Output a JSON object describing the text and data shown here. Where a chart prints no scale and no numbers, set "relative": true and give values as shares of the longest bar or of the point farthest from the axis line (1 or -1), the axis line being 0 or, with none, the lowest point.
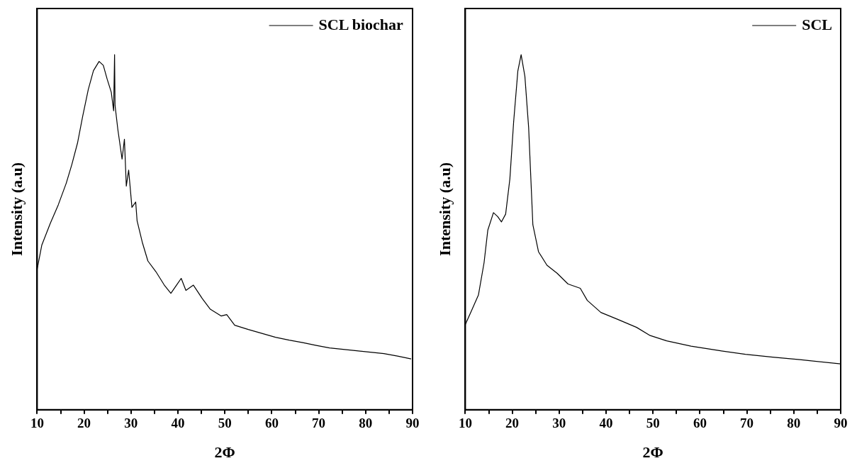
{
  "chart_data": [
    {
      "type": "line",
      "xlabel": "2Φ",
      "ylabel": "Intensity (a.u)",
      "relative": true,
      "legend": "top right",
      "grid": false,
      "marker": "none",
      "line_style": "solid",
      "xlim": [
        10,
        90
      ],
      "xticks": [
        10,
        {
          "value": 15,
          "label": null
        },
        20,
        {
          "value": 25,
          "label": null
        },
        30,
        {
          "value": 35,
          "label": null
        },
        40,
        {
          "value": 45,
          "label": null
        },
        50,
        {
          "value": 55,
          "label": null
        },
        60,
        {
          "value": 65,
          "label": null
        },
        70,
        {
          "value": 75,
          "label": null
        },
        80,
        {
          "value": 85,
          "label": null
        },
        90
      ],
      "x": [
        10,
        11,
        12.8,
        14.5,
        16.2,
        17.4,
        18.6,
        19.7,
        20.9,
        22.0,
        23.2,
        24.1,
        24.9,
        25.8,
        26.3,
        26.5,
        26.6,
        27.2,
        28.1,
        28.6,
        29.0,
        29.5,
        30.2,
        31.0,
        31.3,
        32.4,
        33.6,
        35.3,
        37.1,
        38.5,
        39.7,
        40.7,
        41.7,
        43.3,
        45.2,
        46.9,
        49.2,
        50.4,
        52.1,
        55.0,
        57.9,
        60.8,
        63.7,
        66.6,
        69.5,
        72.3,
        75.2,
        78.1,
        81.0,
        83.9,
        86.8,
        89.7
      ],
      "series": [
        {
          "name": "SCL biochar",
          "color": "#000000",
          "values": [
            0.396,
            0.464,
            0.525,
            0.577,
            0.638,
            0.691,
            0.751,
            0.826,
            0.902,
            0.955,
            0.981,
            0.97,
            0.932,
            0.894,
            0.842,
            1.0,
            0.857,
            0.789,
            0.706,
            0.762,
            0.63,
            0.675,
            0.57,
            0.585,
            0.532,
            0.472,
            0.419,
            0.389,
            0.351,
            0.328,
            0.351,
            0.37,
            0.336,
            0.351,
            0.313,
            0.283,
            0.264,
            0.268,
            0.238,
            0.226,
            0.215,
            0.204,
            0.196,
            0.189,
            0.181,
            0.174,
            0.17,
            0.166,
            0.162,
            0.158,
            0.151,
            0.143
          ]
        }
      ]
    },
    {
      "type": "line",
      "xlabel": "2Φ",
      "ylabel": "Intensity (a.u)",
      "relative": true,
      "legend": "top right",
      "grid": false,
      "marker": "none",
      "line_style": "solid",
      "xlim": [
        10,
        90
      ],
      "xticks": [
        10,
        {
          "value": 15,
          "label": null
        },
        20,
        {
          "value": 25,
          "label": null
        },
        30,
        {
          "value": 35,
          "label": null
        },
        40,
        {
          "value": 45,
          "label": null
        },
        50,
        {
          "value": 55,
          "label": null
        },
        60,
        {
          "value": 65,
          "label": null
        },
        70,
        {
          "value": 75,
          "label": null
        },
        80,
        {
          "value": 85,
          "label": null
        },
        90
      ],
      "x": [
        10,
        11.3,
        12.8,
        14.0,
        14.8,
        16.0,
        16.9,
        17.7,
        18.6,
        19.5,
        20.3,
        21.2,
        21.9,
        22.7,
        23.5,
        24.4,
        25.6,
        27.4,
        29.6,
        31.9,
        34.5,
        36.0,
        38.9,
        42.4,
        46.5,
        49.4,
        52.9,
        58.1,
        63.9,
        69.7,
        75.5,
        81.3,
        90
      ],
      "series": [
        {
          "name": "SCL",
          "color": "#000000",
          "values": [
            0.24,
            0.278,
            0.323,
            0.414,
            0.506,
            0.555,
            0.544,
            0.529,
            0.551,
            0.65,
            0.81,
            0.954,
            1.0,
            0.939,
            0.795,
            0.521,
            0.445,
            0.407,
            0.384,
            0.354,
            0.342,
            0.308,
            0.274,
            0.255,
            0.232,
            0.209,
            0.194,
            0.179,
            0.167,
            0.156,
            0.148,
            0.141,
            0.129
          ]
        }
      ]
    }
  ]
}
